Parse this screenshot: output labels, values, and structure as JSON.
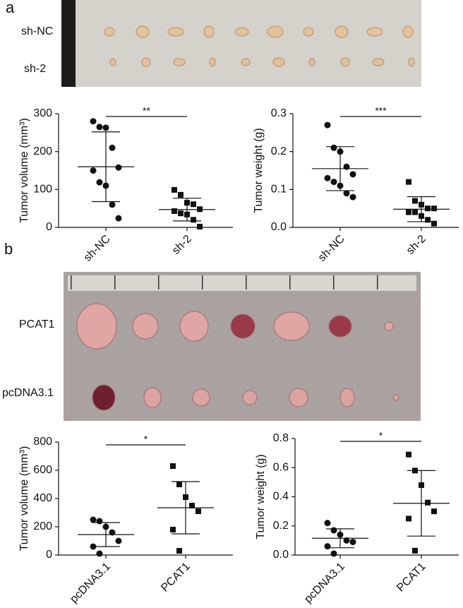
{
  "panels": [
    "a",
    "b"
  ],
  "photos": {
    "a": {
      "rows": [
        "sh-NC",
        "sh-2"
      ]
    },
    "b": {
      "rows": [
        "PCAT1",
        "pcDNA3.1"
      ]
    }
  },
  "chart_data": [
    {
      "type": "dot",
      "ylabel": "Tumor volume (mm³)",
      "categories": [
        "sh-NC",
        "sh-2"
      ],
      "values": [
        [
          280,
          265,
          263,
          210,
          158,
          150,
          119,
          110,
          60,
          24
        ],
        [
          99,
          86,
          65,
          61,
          48,
          43,
          37,
          34,
          20,
          2
        ]
      ],
      "means": [
        160,
        47
      ],
      "sds": [
        92,
        30
      ],
      "markers": [
        "circle",
        "square"
      ],
      "color": "#111111",
      "annotation": "**",
      "ylim": [
        0,
        300
      ],
      "yticks": [
        0,
        100,
        200,
        300
      ]
    },
    {
      "type": "dot",
      "ylabel": "Tumor weight (g)",
      "categories": [
        "sh-NC",
        "sh-2"
      ],
      "values": [
        [
          0.27,
          0.21,
          0.2,
          0.16,
          0.14,
          0.13,
          0.12,
          0.11,
          0.09,
          0.08
        ],
        [
          0.12,
          0.07,
          0.06,
          0.05,
          0.05,
          0.04,
          0.04,
          0.03,
          0.02,
          0.01
        ]
      ],
      "means": [
        0.155,
        0.048
      ],
      "sds": [
        0.058,
        0.033
      ],
      "markers": [
        "circle",
        "square"
      ],
      "color": "#111111",
      "annotation": "***",
      "ylim": [
        0,
        0.3
      ],
      "yticks": [
        {
          "value": 0,
          "label": "0.0"
        },
        0.1,
        0.2,
        0.3
      ]
    },
    {
      "type": "dot",
      "ylabel": "Tumor volume (mm³)",
      "categories": [
        "pcDNA3.1",
        "PCAT1"
      ],
      "values": [
        [
          250,
          240,
          200,
          160,
          100,
          60,
          10
        ],
        [
          630,
          500,
          410,
          350,
          310,
          180,
          30
        ]
      ],
      "means": [
        145,
        335
      ],
      "sds": [
        85,
        185
      ],
      "markers": [
        "circle",
        "square"
      ],
      "color": "#111111",
      "annotation": "*",
      "ylim": [
        0,
        800
      ],
      "yticks": [
        0,
        200,
        400,
        600,
        800
      ]
    },
    {
      "type": "dot",
      "ylabel": "Tumor weight (g)",
      "categories": [
        "pcDNA3.1",
        "PCAT1"
      ],
      "values": [
        [
          0.22,
          0.17,
          0.14,
          0.1,
          0.09,
          0.06,
          0.01
        ],
        [
          0.69,
          0.58,
          0.48,
          0.36,
          0.3,
          0.25,
          0.03
        ]
      ],
      "means": [
        0.115,
        0.355
      ],
      "sds": [
        0.065,
        0.225
      ],
      "markers": [
        "circle",
        "square"
      ],
      "color": "#111111",
      "annotation": "*",
      "ylim": [
        0,
        0.8
      ],
      "yticks": [
        {
          "value": 0,
          "label": "0.0"
        },
        0.2,
        0.4,
        0.6,
        0.8
      ]
    }
  ]
}
